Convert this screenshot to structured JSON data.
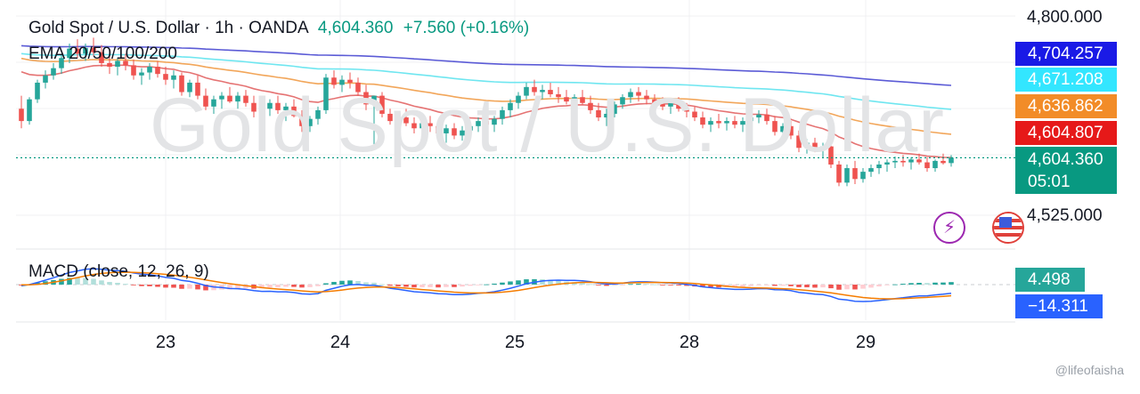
{
  "header": {
    "symbol": "Gold Spot / U.S. Dollar · 1h · OANDA",
    "price": "4,604.360",
    "change": "+7.560 (+0.16%)",
    "watermark": "Gold Spot / U.S. Dollar"
  },
  "indicators": {
    "ema_label": "EMA 20/50/100/200",
    "macd_label": "MACD (close, 12, 26, 9)"
  },
  "price_axis": {
    "top_label": "4,800.000",
    "bottom_label": "4,525.000",
    "tags": [
      {
        "value": "4,704.257",
        "color": "#1a1ae6"
      },
      {
        "value": "4,671.208",
        "color": "#33e6ff"
      },
      {
        "value": "4,636.862",
        "color": "#f28c28"
      },
      {
        "value": "4,604.807",
        "color": "#e61919"
      }
    ],
    "current": {
      "value": "4,604.360",
      "countdown": "05:01",
      "color": "#089981"
    }
  },
  "macd_axis": {
    "histogram_value": "4.498",
    "histogram_color": "#26a69a",
    "macd_value": "−14.311",
    "macd_color": "#2962ff"
  },
  "x_axis": {
    "labels": [
      "23",
      "24",
      "25",
      "28",
      "29"
    ]
  },
  "buttons": {
    "flash_icon": "lightning-icon",
    "globe_icon": "flag-globe-icon"
  },
  "credit": "@lifeofaisha",
  "chart_data": {
    "type": "candlestick",
    "title": "Gold Spot / U.S. Dollar · 1h · OANDA",
    "y_range": [
      4525,
      4800
    ],
    "last_price": 4604.36,
    "x_categories": [
      "23",
      "24",
      "25",
      "28",
      "29"
    ],
    "candles": [
      [
        4672,
        4690,
        4645,
        4655
      ],
      [
        4655,
        4688,
        4650,
        4685
      ],
      [
        4685,
        4712,
        4680,
        4708
      ],
      [
        4708,
        4725,
        4700,
        4718
      ],
      [
        4718,
        4735,
        4712,
        4728
      ],
      [
        4728,
        4748,
        4720,
        4742
      ],
      [
        4742,
        4762,
        4735,
        4755
      ],
      [
        4755,
        4768,
        4742,
        4748
      ],
      [
        4748,
        4762,
        4738,
        4756
      ],
      [
        4756,
        4770,
        4745,
        4750
      ],
      [
        4750,
        4760,
        4730,
        4735
      ],
      [
        4735,
        4745,
        4720,
        4730
      ],
      [
        4730,
        4742,
        4718,
        4738
      ],
      [
        4738,
        4748,
        4725,
        4732
      ],
      [
        4732,
        4740,
        4712,
        4718
      ],
      [
        4718,
        4728,
        4705,
        4722
      ],
      [
        4722,
        4735,
        4712,
        4730
      ],
      [
        4730,
        4738,
        4715,
        4720
      ],
      [
        4720,
        4730,
        4705,
        4712
      ],
      [
        4712,
        4725,
        4700,
        4718
      ],
      [
        4718,
        4722,
        4690,
        4695
      ],
      [
        4695,
        4712,
        4688,
        4708
      ],
      [
        4708,
        4718,
        4685,
        4690
      ],
      [
        4690,
        4700,
        4670,
        4675
      ],
      [
        4675,
        4690,
        4665,
        4685
      ],
      [
        4685,
        4695,
        4672,
        4690
      ],
      [
        4690,
        4702,
        4680,
        4682
      ],
      [
        4682,
        4695,
        4672,
        4690
      ],
      [
        4690,
        4698,
        4675,
        4680
      ],
      [
        4680,
        4690,
        4660,
        4668
      ],
      [
        4668,
        4678,
        4650,
        4672
      ],
      [
        4672,
        4685,
        4662,
        4680
      ],
      [
        4680,
        4690,
        4665,
        4670
      ],
      [
        4670,
        4680,
        4655,
        4675
      ],
      [
        4675,
        4685,
        4660,
        4662
      ],
      [
        4662,
        4670,
        4640,
        4648
      ],
      [
        4648,
        4662,
        4640,
        4658
      ],
      [
        4658,
        4675,
        4650,
        4670
      ],
      [
        4670,
        4720,
        4665,
        4715
      ],
      [
        4715,
        4725,
        4700,
        4705
      ],
      [
        4705,
        4718,
        4695,
        4712
      ],
      [
        4712,
        4722,
        4700,
        4708
      ],
      [
        4708,
        4715,
        4690,
        4695
      ],
      [
        4695,
        4705,
        4670,
        4678
      ],
      [
        4678,
        4690,
        4620,
        4690
      ],
      [
        4690,
        4695,
        4660,
        4665
      ],
      [
        4665,
        4672,
        4650,
        4655
      ],
      [
        4655,
        4668,
        4645,
        4660
      ],
      [
        4660,
        4672,
        4648,
        4652
      ],
      [
        4652,
        4660,
        4638,
        4645
      ],
      [
        4645,
        4658,
        4635,
        4652
      ],
      [
        4652,
        4662,
        4640,
        4648
      ],
      [
        4648,
        4655,
        4632,
        4638
      ],
      [
        4638,
        4650,
        4625,
        4645
      ],
      [
        4645,
        4652,
        4630,
        4635
      ],
      [
        4635,
        4648,
        4628,
        4642
      ],
      [
        4642,
        4652,
        4632,
        4648
      ],
      [
        4648,
        4660,
        4640,
        4655
      ],
      [
        4655,
        4665,
        4645,
        4650
      ],
      [
        4650,
        4662,
        4640,
        4658
      ],
      [
        4658,
        4675,
        4650,
        4670
      ],
      [
        4670,
        4685,
        4660,
        4680
      ],
      [
        4680,
        4695,
        4672,
        4690
      ],
      [
        4690,
        4708,
        4685,
        4702
      ],
      [
        4702,
        4712,
        4690,
        4695
      ],
      [
        4695,
        4705,
        4685,
        4698
      ],
      [
        4698,
        4708,
        4688,
        4692
      ],
      [
        4692,
        4702,
        4680,
        4688
      ],
      [
        4688,
        4698,
        4678,
        4682
      ],
      [
        4682,
        4692,
        4672,
        4688
      ],
      [
        4688,
        4698,
        4678,
        4680
      ],
      [
        4680,
        4690,
        4665,
        4670
      ],
      [
        4670,
        4680,
        4655,
        4660
      ],
      [
        4660,
        4672,
        4648,
        4665
      ],
      [
        4665,
        4682,
        4660,
        4678
      ],
      [
        4678,
        4692,
        4672,
        4688
      ],
      [
        4688,
        4700,
        4680,
        4695
      ],
      [
        4695,
        4702,
        4682,
        4690
      ],
      [
        4690,
        4698,
        4678,
        4685
      ],
      [
        4685,
        4692,
        4672,
        4680
      ],
      [
        4680,
        4688,
        4670,
        4675
      ],
      [
        4675,
        4684,
        4665,
        4680
      ],
      [
        4680,
        4688,
        4668,
        4672
      ],
      [
        4672,
        4680,
        4660,
        4668
      ],
      [
        4668,
        4675,
        4655,
        4660
      ],
      [
        4660,
        4668,
        4645,
        4650
      ],
      [
        4650,
        4660,
        4640,
        4655
      ],
      [
        4655,
        4665,
        4645,
        4652
      ],
      [
        4652,
        4660,
        4642,
        4655
      ],
      [
        4655,
        4662,
        4645,
        4650
      ],
      [
        4650,
        4660,
        4640,
        4655
      ],
      [
        4655,
        4665,
        4648,
        4660
      ],
      [
        4660,
        4670,
        4652,
        4664
      ],
      [
        4664,
        4672,
        4650,
        4655
      ],
      [
        4655,
        4662,
        4635,
        4640
      ],
      [
        4640,
        4652,
        4632,
        4648
      ],
      [
        4648,
        4655,
        4630,
        4635
      ],
      [
        4635,
        4642,
        4612,
        4618
      ],
      [
        4618,
        4630,
        4610,
        4625
      ],
      [
        4625,
        4632,
        4612,
        4615
      ],
      [
        4615,
        4625,
        4605,
        4620
      ],
      [
        4620,
        4625,
        4590,
        4595
      ],
      [
        4595,
        4600,
        4565,
        4570
      ],
      [
        4570,
        4595,
        4565,
        4590
      ],
      [
        4590,
        4600,
        4568,
        4575
      ],
      [
        4575,
        4590,
        4570,
        4585
      ],
      [
        4585,
        4595,
        4578,
        4590
      ],
      [
        4590,
        4600,
        4582,
        4595
      ],
      [
        4595,
        4602,
        4585,
        4598
      ],
      [
        4598,
        4606,
        4590,
        4600
      ],
      [
        4600,
        4608,
        4592,
        4598
      ],
      [
        4598,
        4605,
        4588,
        4602
      ],
      [
        4602,
        4610,
        4595,
        4598
      ],
      [
        4598,
        4605,
        4585,
        4590
      ],
      [
        4590,
        4602,
        4585,
        4600
      ],
      [
        4600,
        4610,
        4595,
        4597
      ],
      [
        4597,
        4608,
        4592,
        4604.36
      ]
    ],
    "ema_series": [
      {
        "name": "EMA 20",
        "color": "#e57373",
        "last": 4604.807
      },
      {
        "name": "EMA 50",
        "color": "#f2a65a",
        "last": 4636.862
      },
      {
        "name": "EMA 100",
        "color": "#6fe6f0",
        "last": 4671.208
      },
      {
        "name": "EMA 200",
        "color": "#5b5bd6",
        "last": 4704.257
      }
    ],
    "macd": {
      "params": "close, 12, 26, 9",
      "histogram_last": 4.498,
      "macd_last": -14.311,
      "macd_color": "#2962ff",
      "signal_color": "#f57c00"
    }
  }
}
